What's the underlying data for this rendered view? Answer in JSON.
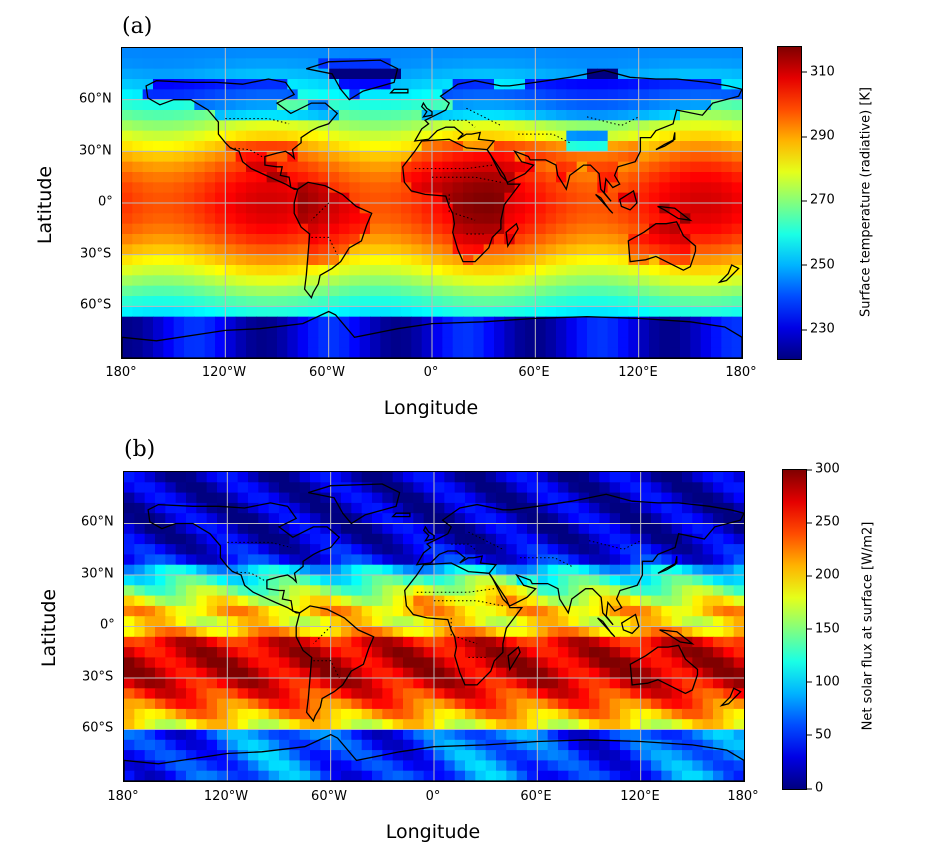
{
  "panels": [
    {
      "label": "(a)",
      "xlabel": "Longitude",
      "ylabel": "Latitude",
      "x_ticks": [
        "180°",
        "120°W",
        "60°W",
        "0°",
        "60°E",
        "120°E",
        "180°"
      ],
      "y_ticks": [
        "60°N",
        "30°N",
        "0°",
        "30°S",
        "60°S"
      ],
      "colorbar": {
        "label": "Surface temperature  (radiative) [K]",
        "ticks": [
          "310",
          "290",
          "270",
          "250",
          "230"
        ],
        "tick_values": [
          310,
          290,
          270,
          250,
          230
        ],
        "range": [
          221,
          318
        ],
        "colormap": "jet"
      },
      "field": "surface-temperature"
    },
    {
      "label": "(b)",
      "xlabel": "Longitude",
      "ylabel": "Latitude",
      "x_ticks": [
        "180°",
        "120°W",
        "60°W",
        "0°",
        "60°E",
        "120°E",
        "180°"
      ],
      "y_ticks": [
        "60°N",
        "30°N",
        "0°",
        "30°S",
        "60°S"
      ],
      "colorbar": {
        "label": "Net solar flux at surface   [W/m2]",
        "ticks": [
          "300",
          "250",
          "200",
          "150",
          "100",
          "50",
          "0"
        ],
        "tick_values": [
          300,
          250,
          200,
          150,
          100,
          50,
          0
        ],
        "range": [
          0,
          300
        ],
        "colormap": "jet"
      },
      "field": "net-solar-flux"
    }
  ]
}
